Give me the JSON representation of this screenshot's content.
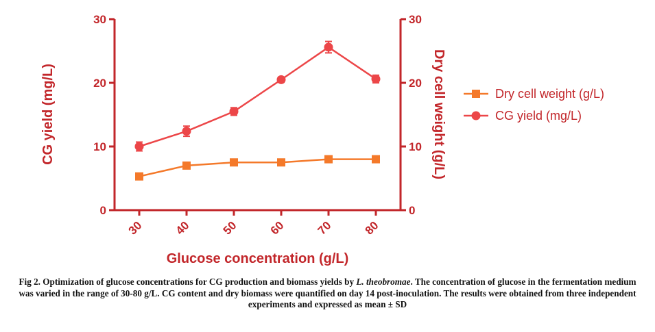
{
  "chart_data": {
    "type": "line",
    "categories": [
      "30",
      "40",
      "50",
      "60",
      "70",
      "80"
    ],
    "xlabel": "Glucose concentration (g/L)",
    "ylabel_left": "CG yield (mg/L)",
    "ylabel_right": "Dry cell weight (g/L)",
    "ylim_left": [
      0,
      30
    ],
    "ylim_right": [
      0,
      30
    ],
    "yticks_left": [
      "0",
      "10",
      "20",
      "30"
    ],
    "yticks_right": [
      "0",
      "10",
      "20",
      "30"
    ],
    "grid": false,
    "legend_position": "right",
    "series": [
      {
        "name": "Dry  cell weight (g/L)",
        "axis": "right",
        "marker": "square",
        "color": "#f4792a",
        "values": [
          5.3,
          7.0,
          7.5,
          7.5,
          8.0,
          8.0
        ],
        "errors": [
          0.3,
          0.3,
          0.2,
          0.2,
          0.2,
          0.2
        ]
      },
      {
        "name": "CG yield (mg/L)",
        "axis": "left",
        "marker": "circle",
        "color": "#ec4648",
        "values": [
          10.0,
          12.4,
          15.5,
          20.5,
          25.6,
          20.6
        ],
        "errors": [
          0.7,
          0.8,
          0.6,
          0.4,
          0.9,
          0.6
        ]
      }
    ]
  },
  "colors": {
    "axis": "#c2262a"
  },
  "caption": {
    "prefix": "Fig 2. Optimization of glucose concentrations for CG production and biomass yields by ",
    "species": "L. theobromae",
    "rest": ". The concentration of glucose in the fermentation medium was varied in the range of 30-80 g/L. CG content and dry biomass were quantified on day 14 post-inoculation. The results were obtained from three independent experiments and expressed as mean ± SD"
  }
}
